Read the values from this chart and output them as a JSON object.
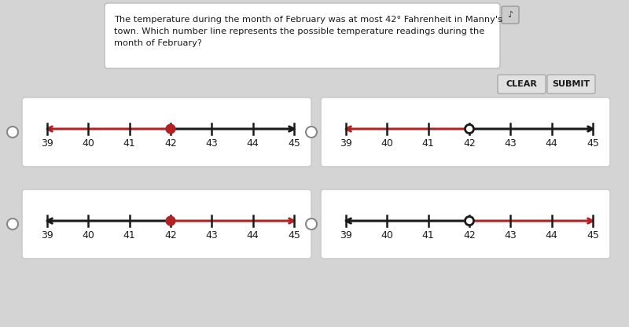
{
  "bg_color": "#d4d4d4",
  "panel_bg": "#ffffff",
  "text_color": "#000000",
  "red_color": "#b22222",
  "black_color": "#1a1a1a",
  "gray_btn": "#e0e0e0",
  "title_text1": "The temperature during the month of February was at most 42° Fahrenheit in Manny's",
  "title_text2": "town. Which number line represents the possible temperature readings during the",
  "title_text3": "month of February?",
  "tick_values": [
    39,
    40,
    41,
    42,
    43,
    44,
    45
  ],
  "special_value": 42,
  "panels": [
    {
      "dot_filled": true,
      "red_direction": "left"
    },
    {
      "dot_filled": false,
      "red_direction": "left"
    },
    {
      "dot_filled": true,
      "red_direction": "right"
    },
    {
      "dot_filled": false,
      "red_direction": "right"
    }
  ],
  "button_clear": "CLEAR",
  "button_submit": "SUBMIT",
  "figsize": [
    8.0,
    4.16
  ],
  "dpi": 100
}
